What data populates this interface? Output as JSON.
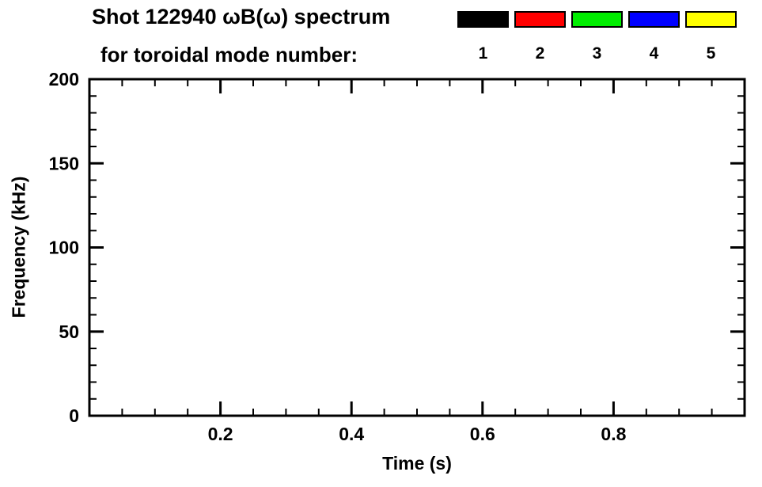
{
  "header": {
    "title_line1": "Shot 122940 ωB(ω) spectrum",
    "title_line2": "for toroidal mode number:"
  },
  "legend": {
    "items": [
      {
        "label": "1",
        "color": "#000000"
      },
      {
        "label": "2",
        "color": "#ff0000"
      },
      {
        "label": "3",
        "color": "#00ee00"
      },
      {
        "label": "4",
        "color": "#0000ff"
      },
      {
        "label": "5",
        "color": "#ffff00"
      }
    ]
  },
  "chart_data": {
    "type": "scatter",
    "title": "Shot 122940 ωB(ω) spectrum for toroidal mode number: 1 2 3 4 5",
    "xlabel": "Time (s)",
    "ylabel": "Frequency (kHz)",
    "xlim": [
      0.0,
      1.0
    ],
    "ylim": [
      0,
      200
    ],
    "x_ticks": [
      0.2,
      0.4,
      0.6,
      0.8
    ],
    "x_tick_labels": [
      "0.2",
      "0.4",
      "0.6",
      "0.8"
    ],
    "y_ticks": [
      0,
      50,
      100,
      150,
      200
    ],
    "y_tick_labels": [
      "0",
      "50",
      "100",
      "150",
      "200"
    ],
    "x_minor_step": 0.05,
    "y_minor_step": 10,
    "grid": false,
    "legend_position": "top-right",
    "series": [
      {
        "name": "n=1",
        "color": "#000000",
        "points": []
      },
      {
        "name": "n=2",
        "color": "#ff0000",
        "points": []
      },
      {
        "name": "n=3",
        "color": "#00ee00",
        "points": []
      },
      {
        "name": "n=4",
        "color": "#0000ff",
        "points": []
      },
      {
        "name": "n=5",
        "color": "#ffff00",
        "points": []
      }
    ]
  }
}
